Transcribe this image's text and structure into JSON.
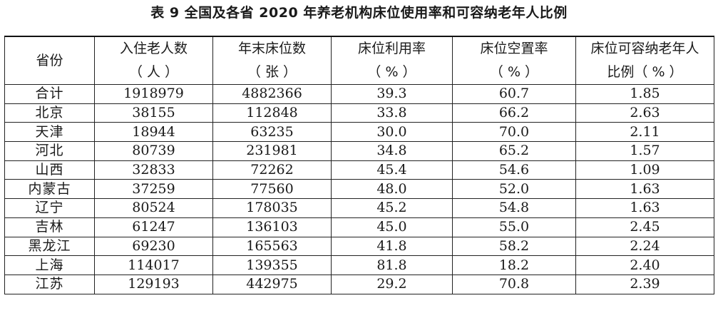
{
  "caption": "表 9  全国及各省 2020 年养老机构床位使用率和可容纳老年人比例",
  "table": {
    "header": {
      "province": "省份",
      "residents_l1": "入住老人数",
      "residents_l2": "（ 人 ）",
      "beds_l1": "年末床位数",
      "beds_l2": "（ 张 ）",
      "util_l1": "床位利用率",
      "util_l2": "（ % ）",
      "vacancy_l1": "床位空置率",
      "vacancy_l2": "（ % ）",
      "capacity_l1": "床位可容纳老年人",
      "capacity_l2": "比例（ % ）"
    },
    "rows": [
      {
        "province": "合计",
        "residents": "1918979",
        "beds": "4882366",
        "utilization": "39.3",
        "vacancy": "60.7",
        "capacity": "1.85"
      },
      {
        "province": "北京",
        "residents": "38155",
        "beds": "112848",
        "utilization": "33.8",
        "vacancy": "66.2",
        "capacity": "2.63"
      },
      {
        "province": "天津",
        "residents": "18944",
        "beds": "63235",
        "utilization": "30.0",
        "vacancy": "70.0",
        "capacity": "2.11"
      },
      {
        "province": "河北",
        "residents": "80739",
        "beds": "231981",
        "utilization": "34.8",
        "vacancy": "65.2",
        "capacity": "1.57"
      },
      {
        "province": "山西",
        "residents": "32833",
        "beds": "72262",
        "utilization": "45.4",
        "vacancy": "54.6",
        "capacity": "1.09"
      },
      {
        "province": "内蒙古",
        "residents": "37259",
        "beds": "77560",
        "utilization": "48.0",
        "vacancy": "52.0",
        "capacity": "1.63"
      },
      {
        "province": "辽宁",
        "residents": "80524",
        "beds": "178035",
        "utilization": "45.2",
        "vacancy": "54.8",
        "capacity": "1.63"
      },
      {
        "province": "吉林",
        "residents": "61247",
        "beds": "136103",
        "utilization": "45.0",
        "vacancy": "55.0",
        "capacity": "2.45"
      },
      {
        "province": "黑龙江",
        "residents": "69230",
        "beds": "165563",
        "utilization": "41.8",
        "vacancy": "58.2",
        "capacity": "2.24"
      },
      {
        "province": "上海",
        "residents": "114017",
        "beds": "139355",
        "utilization": "81.8",
        "vacancy": "18.2",
        "capacity": "2.40"
      },
      {
        "province": "江苏",
        "residents": "129193",
        "beds": "442975",
        "utilization": "29.2",
        "vacancy": "70.8",
        "capacity": "2.39"
      }
    ]
  }
}
